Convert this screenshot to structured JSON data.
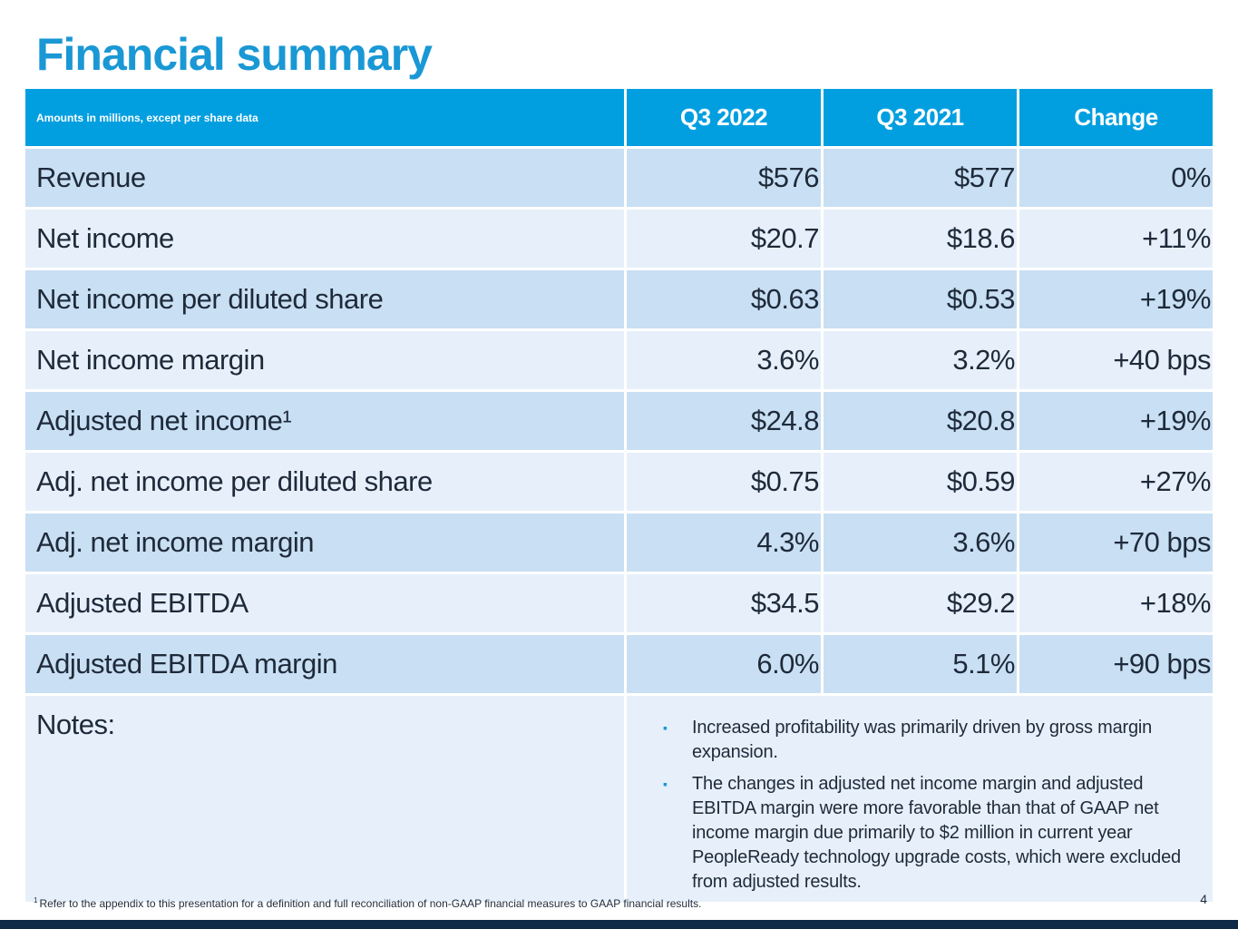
{
  "title": "Financial summary",
  "table": {
    "header": {
      "label": "Amounts in millions, except per share data",
      "columns": [
        "Q3 2022",
        "Q3 2021",
        "Change"
      ]
    },
    "rows": [
      {
        "label": "Revenue",
        "q3_2022": "$576",
        "q3_2021": "$577",
        "change": "0%"
      },
      {
        "label": "Net income",
        "q3_2022": "$20.7",
        "q3_2021": "$18.6",
        "change": "+11%"
      },
      {
        "label": "Net income per diluted share",
        "q3_2022": "$0.63",
        "q3_2021": "$0.53",
        "change": "+19%"
      },
      {
        "label": "Net income margin",
        "q3_2022": "3.6%",
        "q3_2021": "3.2%",
        "change": "+40 bps"
      },
      {
        "label": "Adjusted net income¹",
        "q3_2022": "$24.8",
        "q3_2021": "$20.8",
        "change": "+19%"
      },
      {
        "label": "Adj. net income per diluted share",
        "q3_2022": "$0.75",
        "q3_2021": "$0.59",
        "change": "+27%"
      },
      {
        "label": "Adj. net income margin",
        "q3_2022": "4.3%",
        "q3_2021": "3.6%",
        "change": "+70 bps"
      },
      {
        "label": "Adjusted EBITDA",
        "q3_2022": "$34.5",
        "q3_2021": "$29.2",
        "change": "+18%"
      },
      {
        "label": "Adjusted EBITDA margin",
        "q3_2022": "6.0%",
        "q3_2021": "5.1%",
        "change": "+90 bps"
      }
    ],
    "notes": {
      "label": "Notes:",
      "bullet_icon": "square-bullet-icon",
      "items": [
        "Increased profitability was primarily driven by gross margin expansion.",
        "The changes in adjusted net income margin and adjusted EBITDA margin were more favorable than that of GAAP net income margin due primarily to $2 million in current year PeopleReady technology upgrade costs, which were excluded from adjusted results."
      ]
    }
  },
  "footnote": {
    "marker": "1",
    "text": "Refer to the appendix to this presentation for a definition and full reconciliation of non-GAAP financial measures to GAAP financial results."
  },
  "page_number": "4",
  "colors": {
    "title": "#1a98d5",
    "header_bg": "#029fe0",
    "row_dark": "#c9dff3",
    "row_light": "#e7f0fa",
    "bottom_bar": "#0e2a47"
  }
}
